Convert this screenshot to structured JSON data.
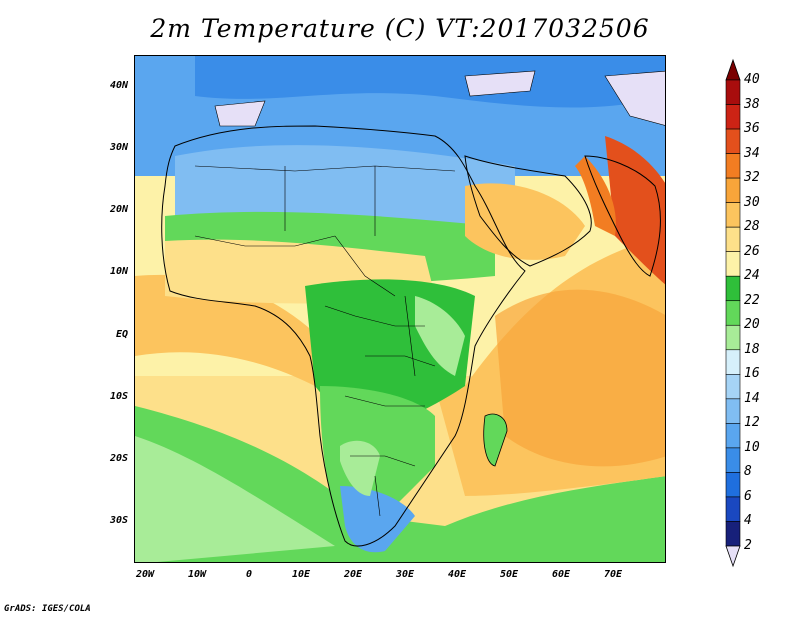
{
  "title": "2m Temperature (C) VT:2017032506",
  "credit": "GrADS: IGES/COLA",
  "lat_labels": [
    "40N",
    "30N",
    "20N",
    "10N",
    "EQ",
    "10S",
    "20S",
    "30S"
  ],
  "lon_labels": [
    "20W",
    "10W",
    "0",
    "10E",
    "20E",
    "30E",
    "40E",
    "50E",
    "60E",
    "70E"
  ],
  "colorbar": {
    "unit": "C",
    "levels": [
      2,
      4,
      6,
      8,
      10,
      12,
      14,
      16,
      18,
      20,
      22,
      24,
      26,
      28,
      30,
      32,
      34,
      36,
      38,
      40
    ],
    "colors": [
      "#e6e0f7",
      "#17207a",
      "#1a48c0",
      "#1f6fde",
      "#3a8de8",
      "#5aa6ef",
      "#80bdf2",
      "#a6d4f6",
      "#d6f0fb",
      "#a8ec98",
      "#62d85a",
      "#2fbf3a",
      "#fdf2a8",
      "#fde08a",
      "#fcc45e",
      "#f8a53a",
      "#f27d22",
      "#e3501c",
      "#cc2315",
      "#a80d0d",
      "#7a0000"
    ]
  },
  "map": {
    "region": "Africa, Middle East and Indian Ocean",
    "lon_range": [
      -22,
      80
    ],
    "lat_range": [
      -37,
      44
    ],
    "field": "2m temperature"
  }
}
